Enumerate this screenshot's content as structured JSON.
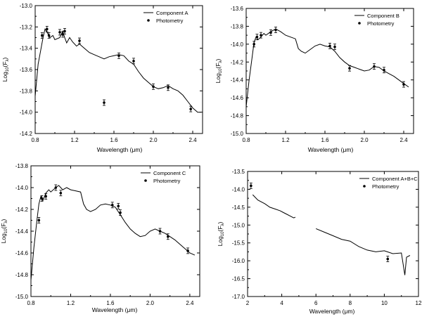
{
  "chart_data": [
    {
      "type": "line",
      "title": "",
      "xlabel": "Wavelength (μm)",
      "ylabel": "Log10(Fλ)",
      "ylabel_main": "Log",
      "ylabel_sub": "10",
      "ylabel_tail": "(F",
      "ylabel_sub2": "λ",
      "ylabel_end": ")",
      "xlim": [
        0.8,
        2.5
      ],
      "ylim": [
        -14.2,
        -13.0
      ],
      "xticks": [
        0.8,
        1.2,
        1.6,
        2.0,
        2.4
      ],
      "xtick_labels": [
        "0.8",
        "1.2",
        "1.6",
        "2.0",
        "2.4"
      ],
      "yticks": [
        -14.2,
        -14.0,
        -13.8,
        -13.6,
        -13.4,
        -13.2,
        -13.0
      ],
      "ytick_labels": [
        "-14.2",
        "-14.0",
        "-13.8",
        "-13.6",
        "-13.4",
        "-13.2",
        "-13.0"
      ],
      "legend": {
        "position": "top-right",
        "line_label": "Component A",
        "point_label": "Photometry"
      },
      "series": [
        {
          "name": "Component A",
          "x": [
            0.8,
            0.83,
            0.86,
            0.88,
            0.9,
            0.92,
            0.95,
            0.98,
            1.0,
            1.05,
            1.08,
            1.1,
            1.12,
            1.15,
            1.18,
            1.22,
            1.25,
            1.3,
            1.35,
            1.4,
            1.45,
            1.5,
            1.55,
            1.6,
            1.65,
            1.7,
            1.75,
            1.8,
            1.85,
            1.9,
            1.95,
            2.0,
            2.05,
            2.1,
            2.15,
            2.2,
            2.25,
            2.3,
            2.35,
            2.4,
            2.45,
            2.48
          ],
          "y": [
            -13.85,
            -13.55,
            -13.4,
            -13.3,
            -13.22,
            -13.25,
            -13.3,
            -13.28,
            -13.32,
            -13.3,
            -13.24,
            -13.3,
            -13.35,
            -13.3,
            -13.34,
            -13.38,
            -13.36,
            -13.4,
            -13.44,
            -13.46,
            -13.48,
            -13.5,
            -13.48,
            -13.47,
            -13.46,
            -13.47,
            -13.52,
            -13.55,
            -13.62,
            -13.68,
            -13.72,
            -13.76,
            -13.78,
            -13.77,
            -13.75,
            -13.78,
            -13.8,
            -13.84,
            -13.9,
            -13.96,
            -14.0,
            -14.0
          ]
        }
      ],
      "photometry": {
        "x": [
          0.87,
          0.92,
          0.94,
          1.05,
          1.08,
          1.1,
          1.25,
          1.5,
          1.65,
          1.8,
          2.0,
          2.15,
          2.38
        ],
        "y": [
          -13.28,
          -13.22,
          -13.28,
          -13.25,
          -13.27,
          -13.24,
          -13.33,
          -13.91,
          -13.47,
          -13.52,
          -13.76,
          -13.77,
          -13.97
        ]
      }
    },
    {
      "type": "line",
      "title": "",
      "xlabel": "Wavelength (μm)",
      "ylabel": "Log10(Fλ)",
      "ylabel_main": "Log",
      "ylabel_sub": "10",
      "ylabel_tail": "(F",
      "ylabel_sub2": "λ",
      "ylabel_end": ")",
      "xlim": [
        0.8,
        2.5
      ],
      "ylim": [
        -15.0,
        -13.6
      ],
      "xticks": [
        0.8,
        1.2,
        1.6,
        2.0,
        2.4
      ],
      "xtick_labels": [
        "0.8",
        "1.2",
        "1.6",
        "2.0",
        "2.4"
      ],
      "yticks": [
        -15.0,
        -14.8,
        -14.6,
        -14.4,
        -14.2,
        -14.0,
        -13.8,
        -13.6
      ],
      "ytick_labels": [
        "-15.0",
        "-14.8",
        "-14.6",
        "-14.4",
        "-14.2",
        "-14.0",
        "-13.8",
        "-13.6"
      ],
      "legend": {
        "position": "top-right",
        "line_label": "Component B",
        "point_label": "Photometry"
      },
      "series": [
        {
          "name": "Component B",
          "x": [
            0.8,
            0.83,
            0.86,
            0.88,
            0.9,
            0.92,
            0.95,
            0.98,
            1.0,
            1.05,
            1.1,
            1.15,
            1.2,
            1.25,
            1.3,
            1.33,
            1.36,
            1.4,
            1.45,
            1.5,
            1.55,
            1.6,
            1.65,
            1.7,
            1.75,
            1.8,
            1.85,
            1.9,
            1.95,
            2.0,
            2.05,
            2.1,
            2.15,
            2.2,
            2.25,
            2.3,
            2.35,
            2.4,
            2.45
          ],
          "y": [
            -14.7,
            -14.4,
            -14.15,
            -13.98,
            -13.92,
            -13.95,
            -13.92,
            -13.88,
            -13.9,
            -13.86,
            -13.83,
            -13.86,
            -13.9,
            -13.92,
            -13.94,
            -14.05,
            -14.08,
            -14.1,
            -14.06,
            -14.02,
            -14.0,
            -14.02,
            -14.03,
            -14.08,
            -14.15,
            -14.2,
            -14.24,
            -14.26,
            -14.28,
            -14.3,
            -14.29,
            -14.25,
            -14.26,
            -14.3,
            -14.33,
            -14.36,
            -14.4,
            -14.44,
            -14.48
          ]
        }
      ],
      "photometry": {
        "x": [
          0.88,
          0.91,
          0.95,
          1.05,
          1.1,
          1.65,
          1.7,
          1.85,
          2.1,
          2.2,
          2.4
        ],
        "y": [
          -14.0,
          -13.92,
          -13.9,
          -13.87,
          -13.84,
          -14.02,
          -14.03,
          -14.27,
          -14.25,
          -14.29,
          -14.45
        ]
      }
    },
    {
      "type": "line",
      "title": "",
      "xlabel": "Wavelength (μm)",
      "ylabel": "Log10(Fλ)",
      "ylabel_main": "Log",
      "ylabel_sub": "10",
      "ylabel_tail": "(F",
      "ylabel_sub2": "λ",
      "ylabel_end": ")",
      "xlim": [
        0.8,
        2.5
      ],
      "ylim": [
        -15.0,
        -13.8
      ],
      "xticks": [
        0.8,
        1.2,
        1.6,
        2.0,
        2.4
      ],
      "xtick_labels": [
        "0.8",
        "1.2",
        "1.6",
        "2.0",
        "2.4"
      ],
      "yticks": [
        -15.0,
        -14.8,
        -14.6,
        -14.4,
        -14.2,
        -14.0,
        -13.8
      ],
      "ytick_labels": [
        "-15.0",
        "-14.8",
        "-14.6",
        "-14.4",
        "-14.2",
        "-14.0",
        "-13.8"
      ],
      "legend": {
        "position": "top-right",
        "line_label": "Component C",
        "point_label": "Photometry"
      },
      "series": [
        {
          "name": "Component C",
          "x": [
            0.8,
            0.83,
            0.86,
            0.88,
            0.9,
            0.92,
            0.95,
            0.98,
            1.0,
            1.05,
            1.08,
            1.12,
            1.16,
            1.2,
            1.25,
            1.3,
            1.33,
            1.36,
            1.4,
            1.45,
            1.5,
            1.55,
            1.6,
            1.65,
            1.7,
            1.75,
            1.8,
            1.85,
            1.9,
            1.95,
            2.0,
            2.05,
            2.1,
            2.15,
            2.2,
            2.25,
            2.3,
            2.35,
            2.4,
            2.45
          ],
          "y": [
            -14.85,
            -14.55,
            -14.3,
            -14.15,
            -14.08,
            -14.12,
            -14.05,
            -14.02,
            -14.04,
            -14.0,
            -13.98,
            -14.02,
            -14.0,
            -14.02,
            -14.03,
            -14.04,
            -14.15,
            -14.2,
            -14.22,
            -14.2,
            -14.16,
            -14.15,
            -14.16,
            -14.18,
            -14.25,
            -14.32,
            -14.38,
            -14.42,
            -14.45,
            -14.44,
            -14.4,
            -14.38,
            -14.4,
            -14.42,
            -14.45,
            -14.48,
            -14.52,
            -14.56,
            -14.6,
            -14.62
          ]
        }
      ],
      "photometry": {
        "x": [
          0.88,
          0.91,
          0.95,
          1.05,
          1.1,
          1.62,
          1.68,
          1.7,
          2.1,
          2.18,
          2.38
        ],
        "y": [
          -14.3,
          -14.1,
          -14.08,
          -14.0,
          -14.05,
          -14.16,
          -14.17,
          -14.23,
          -14.4,
          -14.45,
          -14.58
        ]
      }
    },
    {
      "type": "line",
      "title": "",
      "xlabel": "Wavelength (μm)",
      "ylabel": "Log10(Fλ)",
      "ylabel_main": "Log",
      "ylabel_sub": "10",
      "ylabel_tail": "(F",
      "ylabel_sub2": "λ",
      "ylabel_end": ")",
      "xlim": [
        2,
        12
      ],
      "ylim": [
        -17.0,
        -13.5
      ],
      "xticks": [
        2,
        4,
        6,
        8,
        10,
        12
      ],
      "xtick_labels": [
        "2",
        "4",
        "6",
        "8",
        "10",
        "12"
      ],
      "yticks": [
        -17.0,
        -16.5,
        -16.0,
        -15.5,
        -15.0,
        -14.5,
        -14.0,
        -13.5
      ],
      "ytick_labels": [
        "-17.0",
        "-16.5",
        "-16.0",
        "-15.5",
        "-15.0",
        "-14.5",
        "-14.0",
        "-13.5"
      ],
      "legend": {
        "position": "top-right",
        "line_label": "Component A+B+C",
        "point_label": "Photometry"
      },
      "series": [
        {
          "name": "Segment 1",
          "x": [
            2.3,
            2.6,
            3.0,
            3.3,
            3.6,
            3.9,
            4.1,
            4.3,
            4.5,
            4.7,
            4.8
          ],
          "y": [
            -14.15,
            -14.3,
            -14.4,
            -14.5,
            -14.55,
            -14.6,
            -14.65,
            -14.7,
            -14.75,
            -14.8,
            -14.78
          ]
        },
        {
          "name": "Segment 2",
          "x": [
            6.0,
            6.5,
            7.0,
            7.5,
            8.0,
            8.5,
            9.0,
            9.5,
            10.0,
            10.5,
            11.0,
            11.2,
            11.3,
            11.5
          ],
          "y": [
            -15.1,
            -15.2,
            -15.3,
            -15.4,
            -15.45,
            -15.6,
            -15.7,
            -15.75,
            -15.72,
            -15.8,
            -15.78,
            -16.4,
            -15.9,
            -15.85
          ]
        }
      ],
      "photometry": {
        "x": [
          2.2,
          10.2
        ],
        "y": [
          -13.9,
          -15.95
        ]
      }
    }
  ]
}
